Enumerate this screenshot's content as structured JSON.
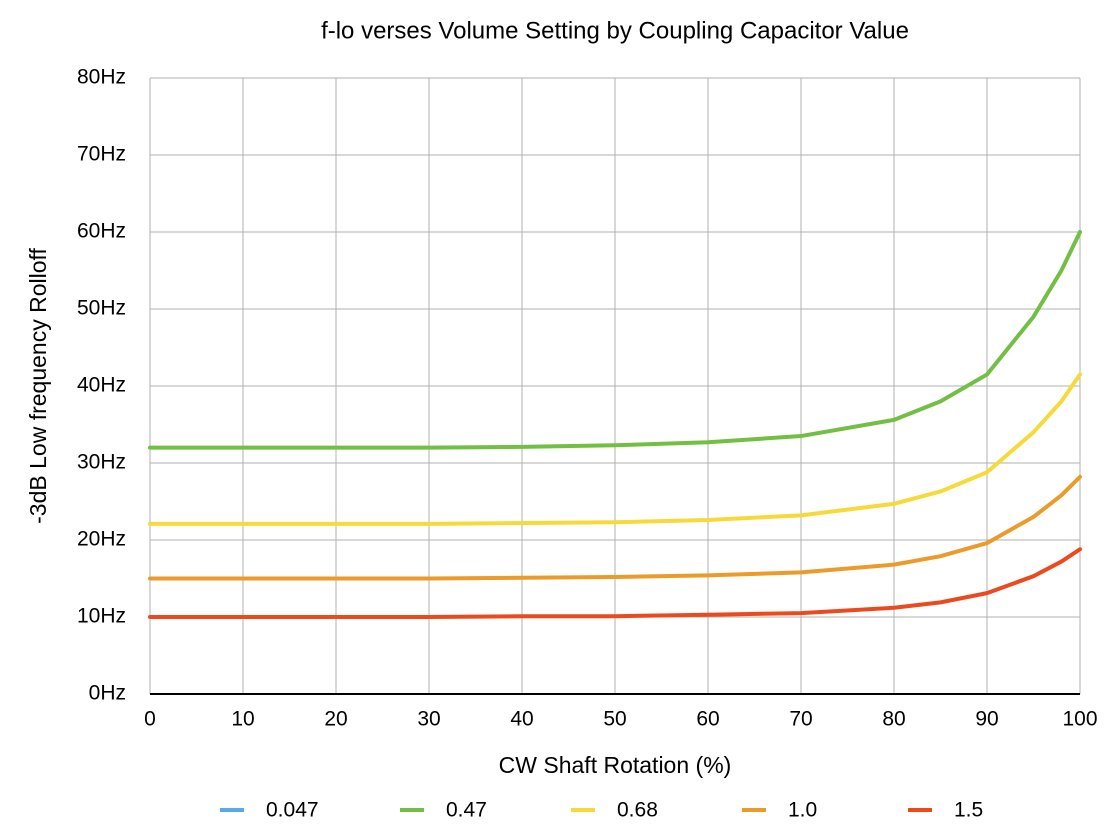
{
  "chart_data": {
    "type": "line",
    "title": "f-lo verses Volume Setting by Coupling Capacitor Value",
    "x_label": "CW Shaft Rotation (%)",
    "y_label": "-3dB Low frequency Rolloff",
    "x": [
      0,
      10,
      20,
      30,
      40,
      50,
      60,
      70,
      80,
      85,
      90,
      95,
      98,
      100
    ],
    "series": [
      {
        "name": "0.047",
        "color": "#5aa9e6",
        "values": [
          null,
          null,
          null,
          null,
          null,
          null,
          null,
          null,
          null,
          null,
          null,
          null,
          null,
          null
        ]
      },
      {
        "name": "0.47",
        "color": "#72bf44",
        "values": [
          32,
          32,
          32,
          32,
          32.1,
          32.3,
          32.7,
          33.5,
          35.6,
          38,
          41.5,
          49,
          55,
          60
        ]
      },
      {
        "name": "0.68",
        "color": "#f6d93a",
        "values": [
          22.1,
          22.1,
          22.1,
          22.1,
          22.2,
          22.3,
          22.6,
          23.2,
          24.7,
          26.3,
          28.8,
          34,
          38,
          41.5
        ]
      },
      {
        "name": "1.0",
        "color": "#eb9b2a",
        "values": [
          15,
          15,
          15,
          15,
          15.1,
          15.2,
          15.4,
          15.8,
          16.8,
          17.9,
          19.6,
          23,
          25.8,
          28.2
        ]
      },
      {
        "name": "1.5",
        "color": "#ec4a1e",
        "values": [
          10,
          10,
          10,
          10,
          10.1,
          10.1,
          10.3,
          10.5,
          11.2,
          11.9,
          13.1,
          15.3,
          17.2,
          18.8
        ]
      }
    ],
    "xlim": [
      0,
      100
    ],
    "xticks": [
      0,
      10,
      20,
      30,
      40,
      50,
      60,
      70,
      80,
      90,
      100
    ],
    "ylim": [
      0,
      80
    ],
    "yticks": [
      {
        "value": 0,
        "label": "0Hz"
      },
      {
        "value": 10,
        "label": "10Hz"
      },
      {
        "value": 20,
        "label": "20Hz"
      },
      {
        "value": 30,
        "label": "30Hz"
      },
      {
        "value": 40,
        "label": "40Hz"
      },
      {
        "value": 50,
        "label": "50Hz"
      },
      {
        "value": 60,
        "label": "60Hz"
      },
      {
        "value": 70,
        "label": "70Hz"
      },
      {
        "value": 80,
        "label": "80Hz"
      }
    ],
    "grid": true,
    "legend": "bottom"
  }
}
